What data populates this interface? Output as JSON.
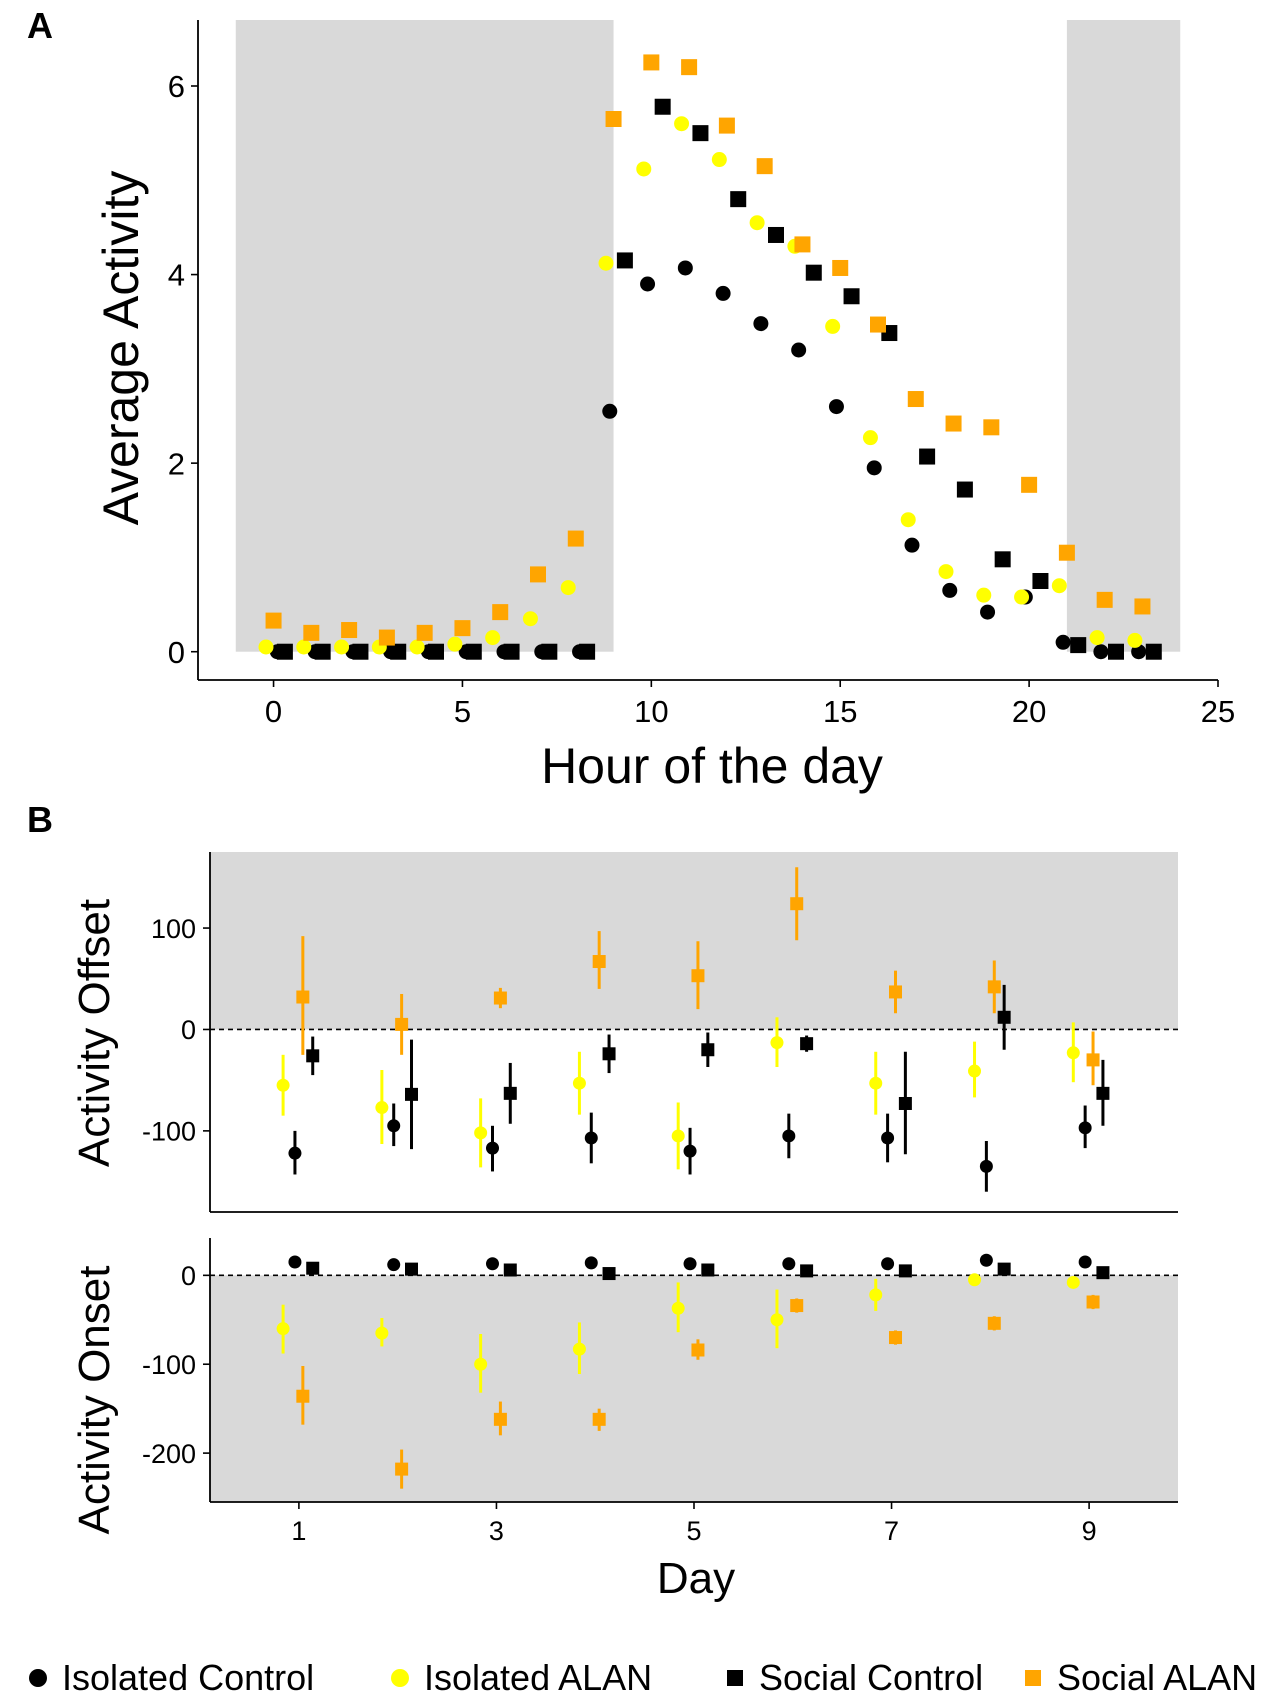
{
  "panels": {
    "a_label": "A",
    "b_label": "B"
  },
  "legend": [
    {
      "label": "Isolated Control",
      "marker": "circle",
      "color": "#000000"
    },
    {
      "label": "Isolated ALAN",
      "marker": "circle",
      "color": "#ffff00"
    },
    {
      "label": "Social Control",
      "marker": "square",
      "color": "#000000"
    },
    {
      "label": "Social ALAN",
      "marker": "square",
      "color": "#ffa500"
    }
  ],
  "colors": {
    "isolated_control": "#000000",
    "isolated_alan": "#ffff00",
    "social_control": "#000000",
    "social_alan": "#ffa500",
    "shade": "#d9d9d9"
  },
  "chart_data": [
    {
      "id": "A",
      "type": "scatter",
      "xlabel": "Hour of the day",
      "ylabel": "Average Activity",
      "xlim": [
        -2,
        25
      ],
      "ylim": [
        -0.3,
        6.7
      ],
      "xticks": [
        0,
        5,
        10,
        15,
        20,
        25
      ],
      "yticks": [
        0,
        2,
        4,
        6
      ],
      "shaded_regions": [
        [
          -1,
          9
        ],
        [
          21,
          24
        ]
      ],
      "grid": false,
      "series": [
        {
          "name": "Isolated Control",
          "marker": "circle",
          "color": "#000000",
          "x": [
            0.1,
            1.1,
            2.1,
            3.1,
            4.1,
            5.1,
            6.1,
            7.1,
            8.1,
            8.9,
            9.9,
            10.9,
            11.9,
            12.9,
            13.9,
            14.9,
            15.9,
            16.9,
            17.9,
            18.9,
            19.9,
            20.9,
            21.9,
            22.9
          ],
          "y": [
            0,
            0,
            0,
            0,
            0,
            0,
            0,
            0,
            0,
            2.55,
            3.9,
            4.07,
            3.8,
            3.48,
            3.2,
            2.6,
            1.95,
            1.13,
            0.65,
            0.42,
            0.58,
            0.1,
            0,
            0
          ]
        },
        {
          "name": "Isolated ALAN",
          "marker": "circle",
          "color": "#ffff00",
          "x": [
            -0.2,
            0.8,
            1.8,
            2.8,
            3.8,
            4.8,
            5.8,
            6.8,
            7.8,
            8.8,
            9.8,
            10.8,
            11.8,
            12.8,
            13.8,
            14.8,
            15.8,
            16.8,
            17.8,
            18.8,
            19.8,
            20.8,
            21.8,
            22.8
          ],
          "y": [
            0.05,
            0.05,
            0.05,
            0.05,
            0.05,
            0.08,
            0.15,
            0.35,
            0.68,
            4.12,
            5.12,
            5.6,
            5.22,
            4.55,
            4.3,
            3.45,
            2.27,
            1.4,
            0.85,
            0.6,
            0.58,
            0.7,
            0.15,
            0.12
          ]
        },
        {
          "name": "Social Control",
          "marker": "square",
          "color": "#000000",
          "x": [
            0.3,
            1.3,
            2.3,
            3.3,
            4.3,
            5.3,
            6.3,
            7.3,
            8.3,
            9.3,
            10.3,
            11.3,
            12.3,
            13.3,
            14.3,
            15.3,
            16.3,
            17.3,
            18.3,
            19.3,
            20.3,
            21.3,
            22.3,
            23.3
          ],
          "y": [
            0,
            0,
            0,
            0,
            0,
            0,
            0,
            0,
            0,
            4.15,
            5.78,
            5.5,
            4.8,
            4.42,
            4.02,
            3.77,
            3.38,
            2.07,
            1.72,
            0.98,
            0.75,
            0.07,
            0,
            0
          ]
        },
        {
          "name": "Social ALAN",
          "marker": "square",
          "color": "#ffa500",
          "x": [
            0,
            1,
            2,
            3,
            4,
            5,
            6,
            7,
            8,
            9,
            10,
            11,
            12,
            13,
            14,
            15,
            16,
            17,
            18,
            19,
            20,
            21,
            22,
            23
          ],
          "y": [
            0.33,
            0.2,
            0.23,
            0.15,
            0.2,
            0.25,
            0.42,
            0.82,
            1.2,
            5.65,
            6.25,
            6.2,
            5.58,
            5.15,
            4.32,
            4.07,
            3.47,
            2.68,
            2.42,
            2.38,
            1.77,
            1.05,
            0.55,
            0.48
          ]
        }
      ]
    },
    {
      "id": "B-offset",
      "type": "scatter",
      "ylabel": "Activity Offset",
      "xlim": [
        0.1,
        9.9
      ],
      "ylim": [
        -180,
        175
      ],
      "yticks": [
        100,
        0,
        -100
      ],
      "reference_line": 0,
      "shaded_above": 0,
      "grid": false,
      "series": [
        {
          "name": "Isolated Control",
          "marker": "circle",
          "color": "#000000",
          "x": [
            0.96,
            1.96,
            2.96,
            3.96,
            4.96,
            5.96,
            6.96,
            7.96,
            8.96
          ],
          "y": [
            -122,
            -95,
            -117,
            -107,
            -120,
            -105,
            -107,
            -135,
            -97
          ],
          "err": [
            [
              -143,
              -100
            ],
            [
              -115,
              -73
            ],
            [
              -140,
              -95
            ],
            [
              -132,
              -82
            ],
            [
              -143,
              -97
            ],
            [
              -127,
              -83
            ],
            [
              -131,
              -83
            ],
            [
              -160,
              -110
            ],
            [
              -117,
              -75
            ]
          ]
        },
        {
          "name": "Isolated ALAN",
          "marker": "circle",
          "color": "#ffff00",
          "x": [
            0.84,
            1.84,
            2.84,
            3.84,
            4.84,
            5.84,
            6.84,
            7.84,
            8.84
          ],
          "y": [
            -55,
            -77,
            -102,
            -53,
            -105,
            -13,
            -53,
            -41,
            -23
          ],
          "err": [
            [
              -85,
              -25
            ],
            [
              -113,
              -40
            ],
            [
              -136,
              -68
            ],
            [
              -84,
              -22
            ],
            [
              -138,
              -72
            ],
            [
              -37,
              12
            ],
            [
              -84,
              -22
            ],
            [
              -67,
              -12
            ],
            [
              -52,
              7
            ]
          ]
        },
        {
          "name": "Social Control",
          "marker": "square",
          "color": "#000000",
          "x": [
            1.14,
            2.14,
            3.14,
            4.14,
            5.14,
            6.14,
            7.14,
            8.14,
            9.14
          ],
          "y": [
            -26,
            -64,
            -63,
            -24,
            -20,
            -14,
            -73,
            12,
            -63
          ],
          "err": [
            [
              -45,
              -7
            ],
            [
              -118,
              -10
            ],
            [
              -93,
              -33
            ],
            [
              -43,
              -5
            ],
            [
              -37,
              -3
            ],
            [
              -22,
              -6
            ],
            [
              -123,
              -22
            ],
            [
              -20,
              44
            ],
            [
              -95,
              -30
            ]
          ]
        },
        {
          "name": "Social ALAN",
          "marker": "square",
          "color": "#ffa500",
          "x": [
            1.04,
            2.04,
            3.04,
            4.04,
            5.04,
            6.04,
            7.04,
            8.04,
            9.04
          ],
          "y": [
            32,
            5,
            31,
            67,
            53,
            124,
            37,
            42,
            -30
          ],
          "err": [
            [
              -25,
              92
            ],
            [
              -25,
              35
            ],
            [
              21,
              41
            ],
            [
              40,
              97
            ],
            [
              20,
              87
            ],
            [
              88,
              160
            ],
            [
              16,
              58
            ],
            [
              16,
              68
            ],
            [
              -55,
              -2
            ]
          ]
        }
      ]
    },
    {
      "id": "B-onset",
      "type": "scatter",
      "xlabel": "Day",
      "ylabel": "Activity Onset",
      "xlim": [
        0.1,
        9.9
      ],
      "ylim": [
        -255,
        42
      ],
      "xticks": [
        1,
        3,
        5,
        7,
        9
      ],
      "yticks": [
        0,
        -100,
        -200
      ],
      "reference_line": 0,
      "shaded_below": 0,
      "grid": false,
      "series": [
        {
          "name": "Isolated Control",
          "marker": "circle",
          "color": "#000000",
          "x": [
            0.96,
            1.96,
            2.96,
            3.96,
            4.96,
            5.96,
            6.96,
            7.96,
            8.96
          ],
          "y": [
            15,
            12,
            13,
            14,
            13,
            13,
            13,
            17,
            15
          ],
          "err": [
            [
              10,
              20
            ],
            [
              8,
              16
            ],
            [
              9,
              17
            ],
            [
              10,
              18
            ],
            [
              9,
              17
            ],
            [
              9,
              17
            ],
            [
              9,
              17
            ],
            [
              12,
              22
            ],
            [
              10,
              20
            ]
          ]
        },
        {
          "name": "Isolated ALAN",
          "marker": "circle",
          "color": "#ffff00",
          "x": [
            0.84,
            1.84,
            2.84,
            3.84,
            4.84,
            5.84,
            6.84,
            7.84,
            8.84
          ],
          "y": [
            -60,
            -65,
            -100,
            -83,
            -37,
            -50,
            -22,
            -5,
            -8
          ],
          "err": [
            [
              -88,
              -33
            ],
            [
              -80,
              -48
            ],
            [
              -132,
              -66
            ],
            [
              -111,
              -53
            ],
            [
              -64,
              -8
            ],
            [
              -82,
              -16
            ],
            [
              -40,
              -4
            ],
            [
              -10,
              0
            ],
            [
              -14,
              -3
            ]
          ]
        },
        {
          "name": "Social Control",
          "marker": "square",
          "color": "#000000",
          "x": [
            1.14,
            2.14,
            3.14,
            4.14,
            5.14,
            6.14,
            7.14,
            8.14,
            9.14
          ],
          "y": [
            8,
            7,
            6,
            2,
            6,
            5,
            5,
            7,
            3
          ],
          "err": [
            [
              4,
              12
            ],
            [
              3,
              11
            ],
            [
              2,
              10
            ],
            [
              -2,
              6
            ],
            [
              2,
              10
            ],
            [
              1,
              9
            ],
            [
              1,
              9
            ],
            [
              3,
              11
            ],
            [
              -1,
              7
            ]
          ]
        },
        {
          "name": "Social ALAN",
          "marker": "square",
          "color": "#ffa500",
          "x": [
            1.04,
            2.04,
            3.04,
            4.04,
            5.04,
            6.04,
            7.04,
            8.04,
            9.04
          ],
          "y": [
            -136,
            -218,
            -162,
            -162,
            -84,
            -34,
            -70,
            -54,
            -30
          ],
          "err": [
            [
              -168,
              -102
            ],
            [
              -240,
              -196
            ],
            [
              -180,
              -142
            ],
            [
              -175,
              -150
            ],
            [
              -95,
              -72
            ],
            [
              -42,
              -26
            ],
            [
              -78,
              -62
            ],
            [
              -62,
              -46
            ],
            [
              -38,
              -22
            ]
          ]
        }
      ]
    }
  ]
}
